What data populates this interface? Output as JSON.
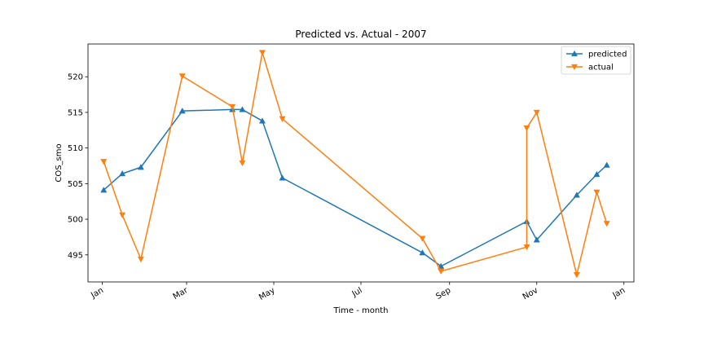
{
  "chart_data": {
    "type": "line",
    "title": "Predicted vs. Actual - 2007",
    "xlabel": "Time - month",
    "ylabel": "COS_smo",
    "xlim": [
      "2006-12-22",
      "2008-01-08"
    ],
    "ylim": [
      491.2,
      524.6
    ],
    "x_ticks": [
      {
        "date": "2007-01-01",
        "label": "Jan"
      },
      {
        "date": "2007-03-01",
        "label": "Mar"
      },
      {
        "date": "2007-05-01",
        "label": "May"
      },
      {
        "date": "2007-07-01",
        "label": "Jul"
      },
      {
        "date": "2007-09-01",
        "label": "Sep"
      },
      {
        "date": "2007-11-01",
        "label": "Nov"
      },
      {
        "date": "2008-01-01",
        "label": "Jan"
      }
    ],
    "y_ticks": [
      495,
      500,
      505,
      510,
      515,
      520
    ],
    "legend_position": "upper right",
    "series": [
      {
        "name": "predicted",
        "color": "#1f77b4",
        "marker": "triangle-up",
        "points": [
          {
            "x": "2007-01-02",
            "y": 504.1
          },
          {
            "x": "2007-01-15",
            "y": 506.4
          },
          {
            "x": "2007-01-28",
            "y": 507.3
          },
          {
            "x": "2007-02-26",
            "y": 515.2
          },
          {
            "x": "2007-04-02",
            "y": 515.4
          },
          {
            "x": "2007-04-09",
            "y": 515.4
          },
          {
            "x": "2007-04-23",
            "y": 513.8
          },
          {
            "x": "2007-05-07",
            "y": 505.8
          },
          {
            "x": "2007-08-13",
            "y": 495.3
          },
          {
            "x": "2007-08-26",
            "y": 493.4
          },
          {
            "x": "2007-10-25",
            "y": 499.7
          },
          {
            "x": "2007-11-01",
            "y": 497.1
          },
          {
            "x": "2007-11-29",
            "y": 503.4
          },
          {
            "x": "2007-12-13",
            "y": 506.3
          },
          {
            "x": "2007-12-20",
            "y": 507.6
          }
        ]
      },
      {
        "name": "actual",
        "color": "#ff7f0e",
        "marker": "triangle-down",
        "points": [
          {
            "x": "2007-01-02",
            "y": 508.1
          },
          {
            "x": "2007-01-15",
            "y": 500.6
          },
          {
            "x": "2007-01-28",
            "y": 494.4
          },
          {
            "x": "2007-02-26",
            "y": 520.1
          },
          {
            "x": "2007-04-02",
            "y": 515.8
          },
          {
            "x": "2007-04-09",
            "y": 507.9
          },
          {
            "x": "2007-04-23",
            "y": 523.4
          },
          {
            "x": "2007-05-07",
            "y": 514.1
          },
          {
            "x": "2007-08-13",
            "y": 497.3
          },
          {
            "x": "2007-08-26",
            "y": 492.7
          },
          {
            "x": "2007-10-25",
            "y": 496.1
          },
          {
            "x": "2007-10-25",
            "y": 512.8
          },
          {
            "x": "2007-11-01",
            "y": 515.0
          },
          {
            "x": "2007-11-29",
            "y": 492.2
          },
          {
            "x": "2007-12-13",
            "y": 503.8
          },
          {
            "x": "2007-12-20",
            "y": 499.4
          }
        ]
      }
    ]
  }
}
